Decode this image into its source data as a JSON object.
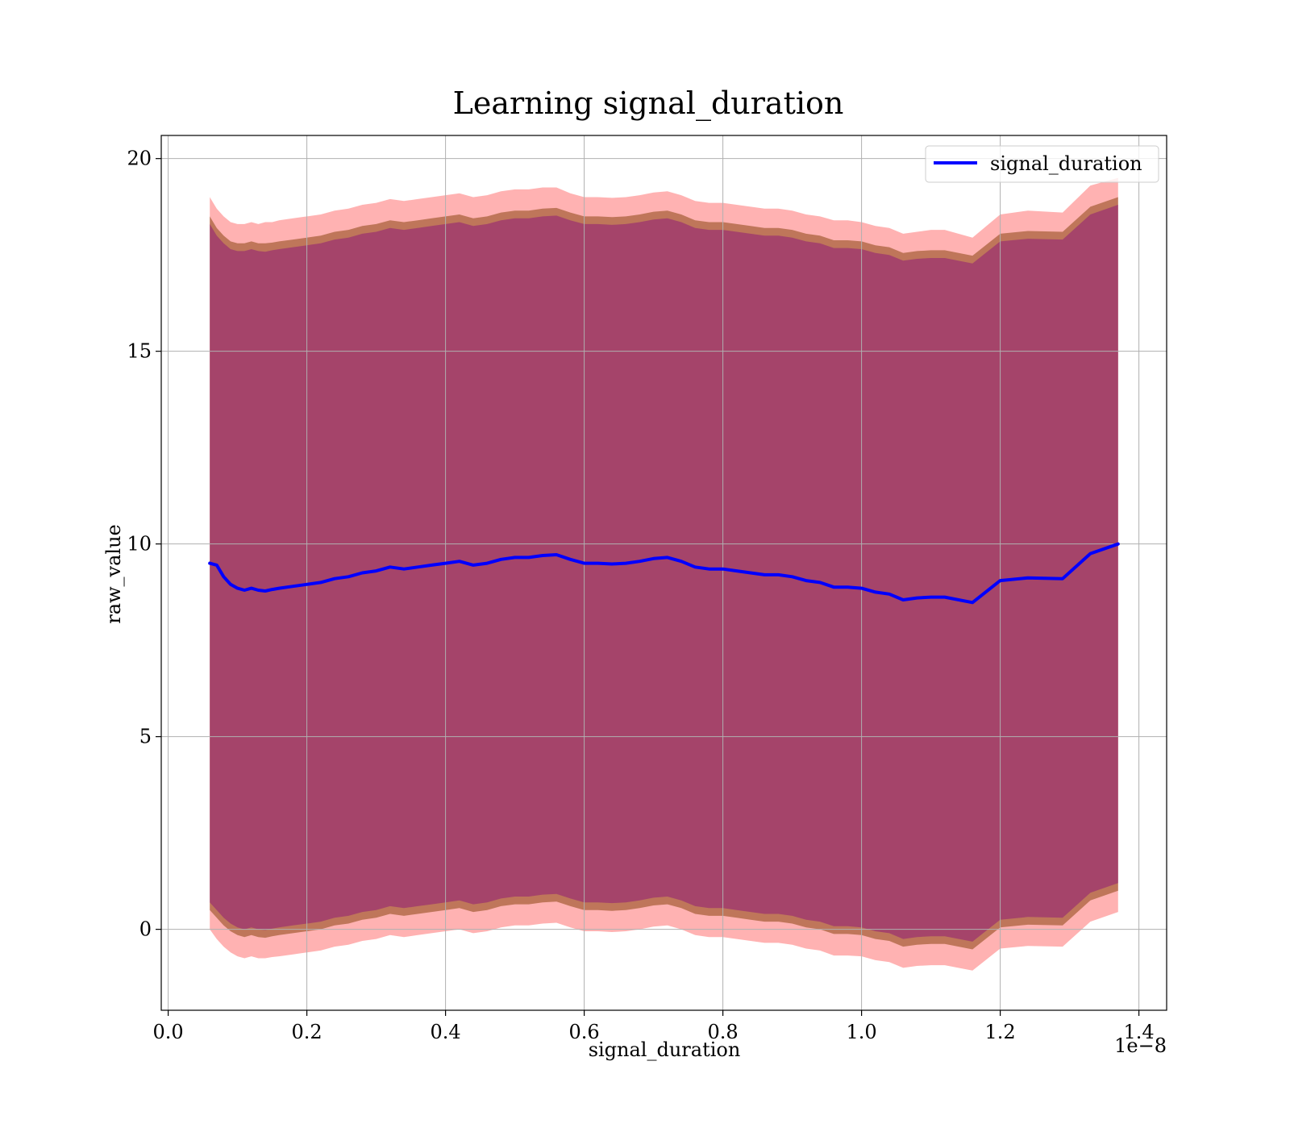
{
  "chart_data": {
    "type": "line",
    "title": "Learning signal_duration",
    "xlabel": "signal_duration",
    "ylabel": "raw_value",
    "x_scale_label": "1e−8",
    "xlim": [
      -0.01,
      1.44
    ],
    "ylim": [
      -2.1,
      20.6
    ],
    "x_ticks": [
      0.0,
      0.2,
      0.4,
      0.6,
      0.8,
      1.0,
      1.2,
      1.4
    ],
    "x_tick_labels": [
      "0.0",
      "0.2",
      "0.4",
      "0.6",
      "0.8",
      "1.0",
      "1.2",
      "1.4"
    ],
    "y_ticks": [
      0,
      5,
      10,
      15,
      20
    ],
    "y_tick_labels": [
      "0",
      "5",
      "10",
      "15",
      "20"
    ],
    "grid": true,
    "legend": {
      "position": "top-right",
      "entries": [
        {
          "label": "signal_duration",
          "color": "#0000ff"
        }
      ]
    },
    "series": [
      {
        "name": "signal_duration",
        "color": "#0000ff",
        "x": [
          0.06,
          0.07,
          0.08,
          0.09,
          0.1,
          0.11,
          0.12,
          0.13,
          0.14,
          0.15,
          0.16,
          0.18,
          0.2,
          0.22,
          0.24,
          0.26,
          0.28,
          0.3,
          0.32,
          0.34,
          0.36,
          0.38,
          0.4,
          0.42,
          0.44,
          0.46,
          0.48,
          0.5,
          0.52,
          0.54,
          0.56,
          0.58,
          0.6,
          0.62,
          0.64,
          0.66,
          0.68,
          0.7,
          0.72,
          0.74,
          0.76,
          0.78,
          0.8,
          0.82,
          0.84,
          0.86,
          0.88,
          0.9,
          0.92,
          0.94,
          0.96,
          0.98,
          1.0,
          1.02,
          1.04,
          1.06,
          1.08,
          1.1,
          1.12,
          1.16,
          1.2,
          1.24,
          1.29,
          1.33,
          1.37
        ],
        "y": [
          9.5,
          9.45,
          9.15,
          8.95,
          8.85,
          8.8,
          8.85,
          8.8,
          8.78,
          8.82,
          8.85,
          8.9,
          8.95,
          9.0,
          9.1,
          9.15,
          9.25,
          9.3,
          9.4,
          9.35,
          9.4,
          9.45,
          9.5,
          9.55,
          9.45,
          9.5,
          9.6,
          9.65,
          9.65,
          9.7,
          9.72,
          9.6,
          9.5,
          9.5,
          9.48,
          9.5,
          9.55,
          9.62,
          9.65,
          9.55,
          9.4,
          9.35,
          9.35,
          9.3,
          9.25,
          9.2,
          9.2,
          9.15,
          9.05,
          9.0,
          8.88,
          8.88,
          8.85,
          8.75,
          8.7,
          8.55,
          8.6,
          8.62,
          8.62,
          8.48,
          9.05,
          9.12,
          9.1,
          9.75,
          10.0
        ]
      }
    ],
    "bands": [
      {
        "color": "#ff0000",
        "opacity": 0.3,
        "upper": [
          19.0,
          18.7,
          18.5,
          18.35,
          18.3,
          18.3,
          18.35,
          18.3,
          18.35,
          18.35,
          18.4,
          18.45,
          18.5,
          18.55,
          18.65,
          18.7,
          18.8,
          18.85,
          18.95,
          18.9,
          18.95,
          19.0,
          19.05,
          19.1,
          19.0,
          19.05,
          19.15,
          19.2,
          19.2,
          19.25,
          19.25,
          19.1,
          19.0,
          19.0,
          18.98,
          19.0,
          19.05,
          19.12,
          19.15,
          19.05,
          18.9,
          18.85,
          18.85,
          18.8,
          18.75,
          18.7,
          18.7,
          18.65,
          18.55,
          18.5,
          18.4,
          18.4,
          18.35,
          18.25,
          18.2,
          18.05,
          18.1,
          18.15,
          18.15,
          17.95,
          18.55,
          18.65,
          18.6,
          19.3,
          19.5
        ],
        "lower": [
          0.0,
          -0.25,
          -0.45,
          -0.6,
          -0.7,
          -0.75,
          -0.7,
          -0.75,
          -0.75,
          -0.72,
          -0.7,
          -0.65,
          -0.6,
          -0.55,
          -0.45,
          -0.4,
          -0.3,
          -0.25,
          -0.15,
          -0.2,
          -0.15,
          -0.1,
          -0.05,
          0.0,
          -0.1,
          -0.05,
          0.05,
          0.1,
          0.1,
          0.15,
          0.17,
          0.05,
          -0.05,
          -0.05,
          -0.07,
          -0.05,
          0.0,
          0.07,
          0.1,
          0.0,
          -0.15,
          -0.2,
          -0.2,
          -0.25,
          -0.3,
          -0.35,
          -0.35,
          -0.4,
          -0.5,
          -0.55,
          -0.68,
          -0.68,
          -0.7,
          -0.8,
          -0.85,
          -1.0,
          -0.95,
          -0.93,
          -0.93,
          -1.07,
          -0.5,
          -0.43,
          -0.45,
          0.2,
          0.45
        ]
      },
      {
        "color": "#8b4513",
        "opacity": 0.55,
        "upper": [
          18.5,
          18.2,
          18.0,
          17.85,
          17.8,
          17.8,
          17.85,
          17.8,
          17.8,
          17.82,
          17.85,
          17.9,
          17.95,
          18.0,
          18.1,
          18.15,
          18.25,
          18.3,
          18.4,
          18.35,
          18.4,
          18.45,
          18.5,
          18.55,
          18.45,
          18.5,
          18.6,
          18.65,
          18.65,
          18.7,
          18.72,
          18.6,
          18.5,
          18.5,
          18.48,
          18.5,
          18.55,
          18.62,
          18.65,
          18.55,
          18.4,
          18.35,
          18.35,
          18.3,
          18.25,
          18.2,
          18.2,
          18.15,
          18.05,
          18.0,
          17.88,
          17.88,
          17.85,
          17.75,
          17.7,
          17.55,
          17.6,
          17.62,
          17.62,
          17.48,
          18.05,
          18.12,
          18.1,
          18.75,
          19.0
        ],
        "lower": [
          0.5,
          0.3,
          0.1,
          -0.05,
          -0.15,
          -0.2,
          -0.15,
          -0.2,
          -0.22,
          -0.18,
          -0.15,
          -0.1,
          -0.05,
          0.0,
          0.1,
          0.15,
          0.25,
          0.3,
          0.4,
          0.35,
          0.4,
          0.45,
          0.5,
          0.55,
          0.45,
          0.5,
          0.6,
          0.65,
          0.65,
          0.7,
          0.72,
          0.6,
          0.5,
          0.5,
          0.48,
          0.5,
          0.55,
          0.62,
          0.65,
          0.55,
          0.4,
          0.35,
          0.35,
          0.3,
          0.25,
          0.2,
          0.2,
          0.15,
          0.05,
          0.0,
          -0.12,
          -0.12,
          -0.15,
          -0.25,
          -0.3,
          -0.45,
          -0.4,
          -0.38,
          -0.38,
          -0.52,
          0.05,
          0.12,
          0.1,
          0.75,
          1.0
        ]
      },
      {
        "color": "#800080",
        "opacity": 0.42,
        "upper": [
          18.3,
          18.0,
          17.8,
          17.65,
          17.6,
          17.6,
          17.65,
          17.6,
          17.58,
          17.62,
          17.65,
          17.7,
          17.75,
          17.8,
          17.9,
          17.95,
          18.05,
          18.1,
          18.2,
          18.15,
          18.2,
          18.25,
          18.3,
          18.35,
          18.25,
          18.3,
          18.4,
          18.45,
          18.45,
          18.5,
          18.52,
          18.4,
          18.3,
          18.3,
          18.28,
          18.3,
          18.35,
          18.42,
          18.45,
          18.35,
          18.2,
          18.15,
          18.15,
          18.1,
          18.05,
          18.0,
          18.0,
          17.95,
          17.85,
          17.8,
          17.68,
          17.68,
          17.65,
          17.55,
          17.5,
          17.35,
          17.4,
          17.42,
          17.42,
          17.28,
          17.85,
          17.92,
          17.9,
          18.55,
          18.8
        ],
        "lower": [
          0.7,
          0.5,
          0.3,
          0.15,
          0.05,
          0.0,
          0.05,
          0.0,
          -0.02,
          0.02,
          0.05,
          0.1,
          0.15,
          0.2,
          0.3,
          0.35,
          0.45,
          0.5,
          0.6,
          0.55,
          0.6,
          0.65,
          0.7,
          0.75,
          0.65,
          0.7,
          0.8,
          0.85,
          0.85,
          0.9,
          0.92,
          0.8,
          0.7,
          0.7,
          0.68,
          0.7,
          0.75,
          0.82,
          0.85,
          0.75,
          0.6,
          0.55,
          0.55,
          0.5,
          0.45,
          0.4,
          0.4,
          0.35,
          0.25,
          0.2,
          0.08,
          0.08,
          0.05,
          -0.05,
          -0.1,
          -0.25,
          -0.2,
          -0.18,
          -0.18,
          -0.32,
          0.25,
          0.32,
          0.3,
          0.95,
          1.2
        ]
      }
    ]
  }
}
